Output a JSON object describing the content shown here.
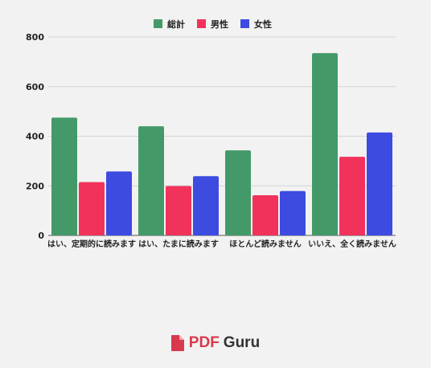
{
  "chart_data": {
    "type": "bar",
    "categories": [
      "はい、定期的に読みます",
      "はい、たまに読みます",
      "ほとんど読みません",
      "いいえ、全く読みません"
    ],
    "series": [
      {
        "name": "総計",
        "color": "#439a68",
        "values": [
          475,
          440,
          343,
          735
        ]
      },
      {
        "name": "男性",
        "color": "#f1335c",
        "values": [
          215,
          199,
          162,
          317
        ]
      },
      {
        "name": "女性",
        "color": "#3d4be0",
        "values": [
          258,
          239,
          179,
          415
        ]
      }
    ],
    "yticks": [
      "0",
      "200",
      "400",
      "600",
      "800"
    ],
    "ylim": [
      0,
      800
    ],
    "grid": true,
    "legend_position": "top-center"
  },
  "brand": {
    "pdf": "PDF",
    "guru": "Guru",
    "icon": "document-icon",
    "pdf_color": "#d8394d"
  }
}
